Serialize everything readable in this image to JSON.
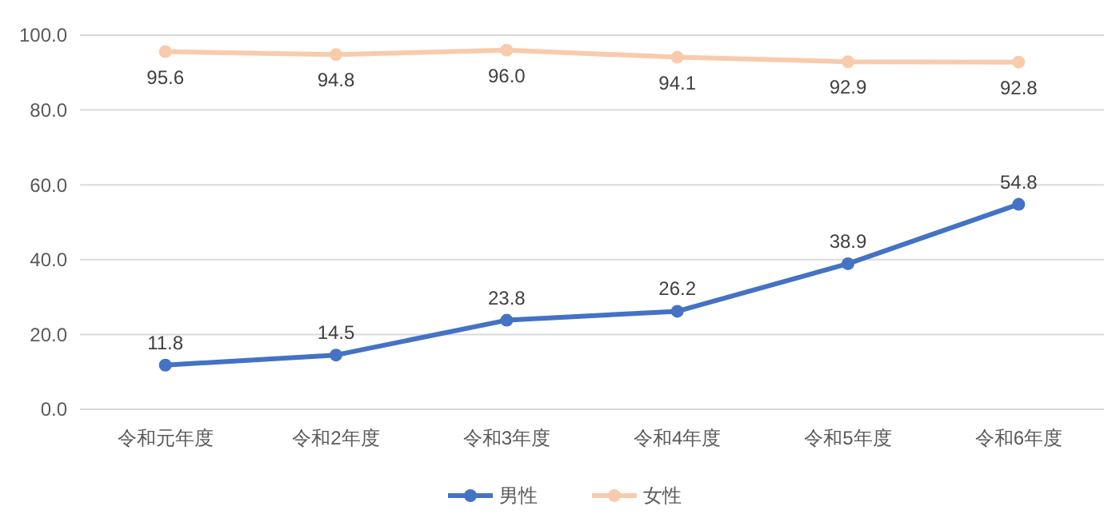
{
  "chart_data": {
    "type": "line",
    "categories": [
      "令和元年度",
      "令和2年度",
      "令和3年度",
      "令和4年度",
      "令和5年度",
      "令和6年度"
    ],
    "series": [
      {
        "name": "男性",
        "color": "#4472c4",
        "values": [
          11.8,
          14.5,
          23.8,
          26.2,
          38.9,
          54.8
        ],
        "value_labels": [
          "11.8",
          "14.5",
          "23.8",
          "26.2",
          "38.9",
          "54.8"
        ]
      },
      {
        "name": "女性",
        "color": "#f8cbad",
        "values": [
          95.6,
          94.8,
          96.0,
          94.1,
          92.9,
          92.8
        ],
        "value_labels": [
          "95.6",
          "94.8",
          "96.0",
          "94.1",
          "92.9",
          "92.8"
        ]
      }
    ],
    "ylim": [
      0,
      100
    ],
    "yticks": [
      {
        "value": 0,
        "label": "0.0"
      },
      {
        "value": 20,
        "label": "20.0"
      },
      {
        "value": 40,
        "label": "40.0"
      },
      {
        "value": 60,
        "label": "60.0"
      },
      {
        "value": 80,
        "label": "80.0"
      },
      {
        "value": 100,
        "label": "100.0"
      }
    ],
    "grid": "y",
    "legend": "bottom",
    "marker": "circle",
    "line_style": "solid"
  }
}
